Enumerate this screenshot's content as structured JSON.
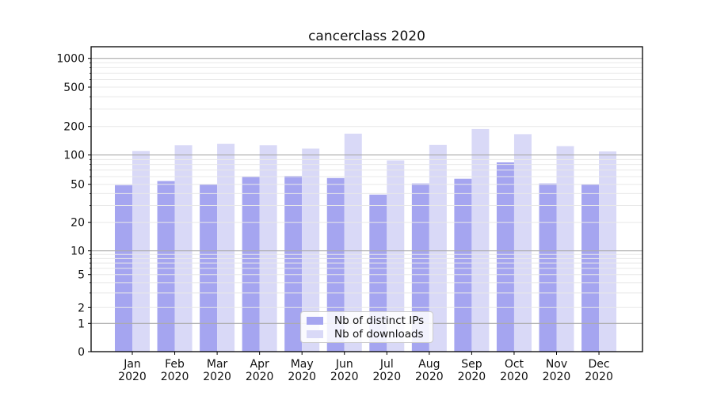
{
  "chart_data": {
    "type": "bar",
    "title": "cancerclass 2020",
    "year": "2020",
    "categories": [
      "Jan",
      "Feb",
      "Mar",
      "Apr",
      "May",
      "Jun",
      "Jul",
      "Aug",
      "Sep",
      "Oct",
      "Nov",
      "Dec"
    ],
    "series": [
      {
        "name": "Nb of distinct IPs",
        "color": "#a5a5f0",
        "values": [
          49,
          54,
          50,
          60,
          61,
          58,
          39,
          51,
          57,
          84,
          51,
          50
        ]
      },
      {
        "name": "Nb of downloads",
        "color": "#d9d9f7",
        "values": [
          110,
          127,
          131,
          127,
          117,
          168,
          88,
          128,
          188,
          166,
          124,
          109
        ]
      }
    ],
    "yticks": [
      0,
      1,
      2,
      5,
      10,
      20,
      50,
      100,
      200,
      500,
      1000
    ],
    "yscale": "symlog",
    "ylim": [
      0,
      1300
    ],
    "xlabel": "",
    "ylabel": "",
    "grid": "major+minor log gridlines drawn above bars",
    "legend_position": "lower center, inside axes",
    "colors": {
      "major_grid": "#ababab",
      "minor_grid": "#e8e8e8",
      "axis": "#000000",
      "text": "#111111",
      "background": "#ffffff"
    }
  }
}
